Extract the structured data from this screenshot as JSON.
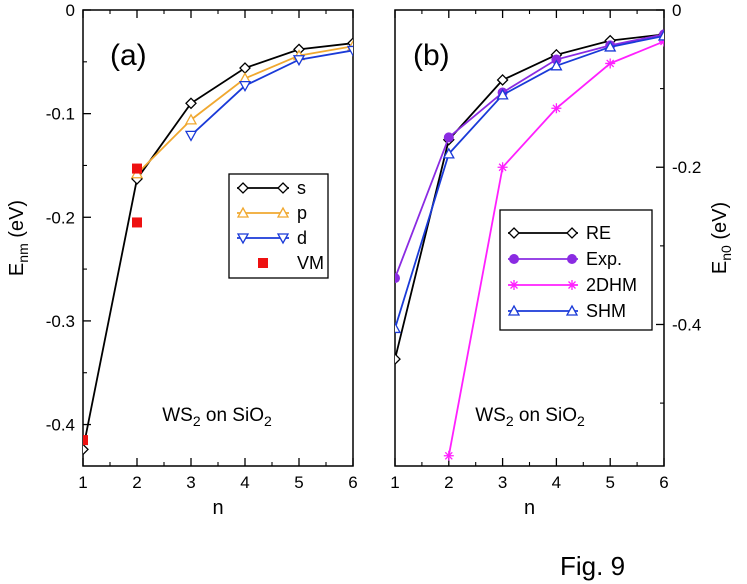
{
  "figure_caption": "Fig. 9",
  "chart_data": [
    {
      "type": "line",
      "panel": "(a)",
      "annotation": {
        "main": "WS",
        "sub1": "2",
        "mid": " on SiO",
        "sub2": "2"
      },
      "xlabel": "n",
      "ylabel": {
        "main": "E",
        "sub": "nm",
        "unit": " (eV)"
      },
      "xlim": [
        1,
        6
      ],
      "ylim": [
        -0.44,
        0
      ],
      "xticks": [
        1,
        2,
        3,
        4,
        5,
        6
      ],
      "xtick_labels": [
        "1",
        "2",
        "3",
        "4",
        "5",
        "6"
      ],
      "yticks": [
        0,
        -0.1,
        -0.2,
        -0.3,
        -0.4
      ],
      "ytick_labels": [
        "0",
        "-0.1",
        "-0.2",
        "-0.3",
        "-0.4"
      ],
      "legend_position": "middle-right",
      "series": [
        {
          "name": "s",
          "color": "#000000",
          "marker": "diamond",
          "x": [
            1,
            2,
            3,
            4,
            5,
            6
          ],
          "values": [
            -0.424,
            -0.163,
            -0.09,
            -0.056,
            -0.038,
            -0.032
          ]
        },
        {
          "name": "p",
          "color": "#f0a830",
          "marker": "triangle-up",
          "x": [
            2,
            3,
            4,
            5,
            6
          ],
          "values": [
            -0.158,
            -0.106,
            -0.066,
            -0.044,
            -0.035
          ]
        },
        {
          "name": "d",
          "color": "#1a3ad8",
          "marker": "triangle-down",
          "x": [
            3,
            4,
            5,
            6
          ],
          "values": [
            -0.121,
            -0.073,
            -0.048,
            -0.039
          ]
        },
        {
          "name": "VM",
          "color": "#ee1111",
          "marker": "square",
          "line": false,
          "x": [
            1,
            2,
            2
          ],
          "values": [
            -0.415,
            -0.153,
            -0.205
          ]
        }
      ]
    },
    {
      "type": "line",
      "panel": "(b)",
      "annotation": {
        "main": "WS",
        "sub1": "2",
        "mid": " on SiO",
        "sub2": "2"
      },
      "xlabel": "n",
      "ylabel": {
        "main": "E",
        "sub": "n0",
        "unit": " (eV)"
      },
      "xlim": [
        1,
        6
      ],
      "ylim": [
        -0.58,
        0
      ],
      "xticks": [
        1,
        2,
        3,
        4,
        5,
        6
      ],
      "xtick_labels": [
        "1",
        "2",
        "3",
        "4",
        "5",
        "6"
      ],
      "yticks": [
        0,
        -0.2,
        -0.4
      ],
      "ytick_labels": [
        "0",
        "-0.2",
        "-0.4"
      ],
      "legend_position": "middle-right",
      "series": [
        {
          "name": "RE",
          "color": "#000000",
          "marker": "diamond",
          "x": [
            1,
            2,
            3,
            4,
            5,
            6
          ],
          "values": [
            -0.444,
            -0.165,
            -0.089,
            -0.057,
            -0.039,
            -0.031
          ]
        },
        {
          "name": "Exp.",
          "color": "#8a2be2",
          "marker": "circle",
          "x": [
            1,
            2,
            3,
            4,
            5,
            6
          ],
          "values": [
            -0.341,
            -0.162,
            -0.105,
            -0.063,
            -0.045,
            -0.031
          ]
        },
        {
          "name": "2DHM",
          "color": "#ff20ff",
          "marker": "star",
          "x": [
            2,
            3,
            4,
            5,
            6
          ],
          "values": [
            -0.567,
            -0.2,
            -0.125,
            -0.068,
            -0.04
          ]
        },
        {
          "name": "SHM",
          "color": "#1a3ad8",
          "marker": "triangle-up",
          "x": [
            1,
            2,
            3,
            4,
            5,
            6
          ],
          "values": [
            -0.405,
            -0.183,
            -0.108,
            -0.071,
            -0.047,
            -0.033
          ]
        }
      ]
    }
  ]
}
